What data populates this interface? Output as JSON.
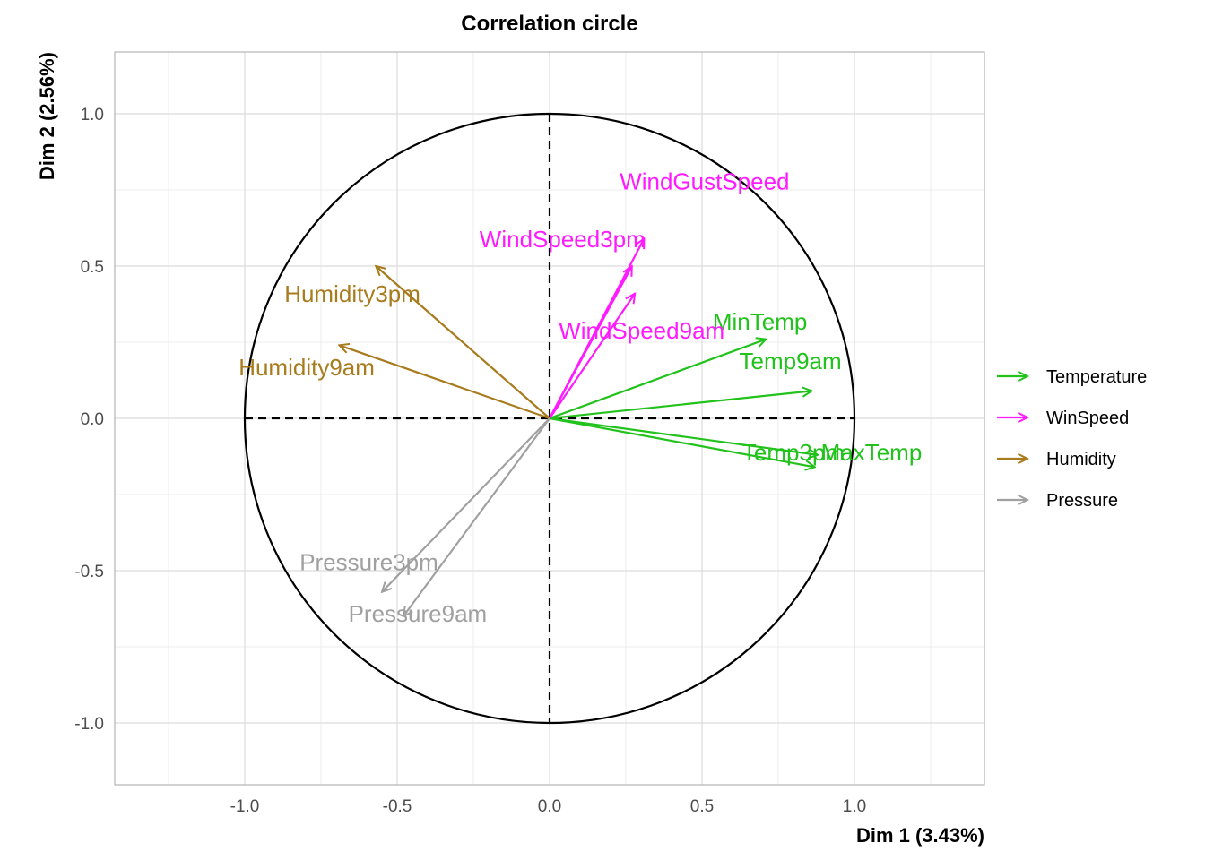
{
  "chart_data": {
    "type": "scatter",
    "title": "Correlation circle",
    "xlabel": "Dim 1 (3.43%)",
    "ylabel": "Dim 2 (2.56%)",
    "xlim": [
      -1.42,
      1.42
    ],
    "ylim": [
      -1.21,
      1.21
    ],
    "x_ticks": [
      "-1.0",
      "-0.5",
      "0.0",
      "0.5",
      "1.0"
    ],
    "y_ticks": [
      "-1.0",
      "-0.5",
      "0.0",
      "0.5",
      "1.0"
    ],
    "grid": true,
    "legend_position": "right",
    "unit_circle": true,
    "groups": [
      {
        "name": "Temperature",
        "color": "#22c21c"
      },
      {
        "name": "WinSpeed",
        "color": "#ff1aff"
      },
      {
        "name": "Humidity",
        "color": "#a87b1c"
      },
      {
        "name": "Pressure",
        "color": "#a0a0a0"
      }
    ],
    "variables": [
      {
        "name": "MinTemp",
        "group": "Temperature",
        "x": 0.71,
        "y": 0.26
      },
      {
        "name": "Temp9am",
        "group": "Temperature",
        "x": 0.86,
        "y": 0.09
      },
      {
        "name": "MaxTemp",
        "group": "Temperature",
        "x": 0.88,
        "y": -0.12
      },
      {
        "name": "Temp3pm",
        "group": "Temperature",
        "x": 0.87,
        "y": -0.16
      },
      {
        "name": "WindGustSpeed",
        "group": "WinSpeed",
        "x": 0.31,
        "y": 0.59
      },
      {
        "name": "WindSpeed3pm",
        "group": "WinSpeed",
        "x": 0.27,
        "y": 0.5
      },
      {
        "name": "WindSpeed9am",
        "group": "WinSpeed",
        "x": 0.28,
        "y": 0.41
      },
      {
        "name": "Humidity3pm",
        "group": "Humidity",
        "x": -0.57,
        "y": 0.5
      },
      {
        "name": "Humidity9am",
        "group": "Humidity",
        "x": -0.69,
        "y": 0.24
      },
      {
        "name": "Pressure3pm",
        "group": "Pressure",
        "x": -0.55,
        "y": -0.57
      },
      {
        "name": "Pressure9am",
        "group": "Pressure",
        "x": -0.48,
        "y": -0.65
      }
    ]
  }
}
